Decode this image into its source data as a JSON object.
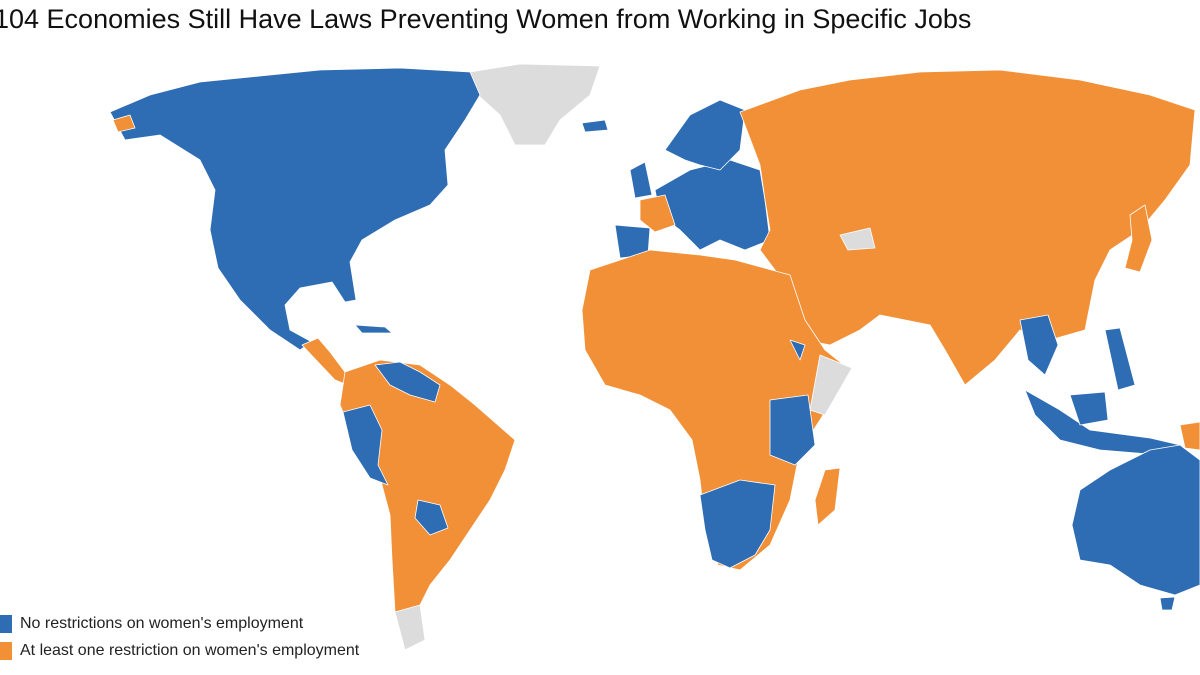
{
  "title": "104 Economies Still Have Laws Preventing Women from Working in Specific Jobs",
  "legend": [
    {
      "label": "No restrictions on women's employment",
      "color": "#2e6db4"
    },
    {
      "label": "At least one restriction on women's employment",
      "color": "#f29038"
    }
  ]
}
